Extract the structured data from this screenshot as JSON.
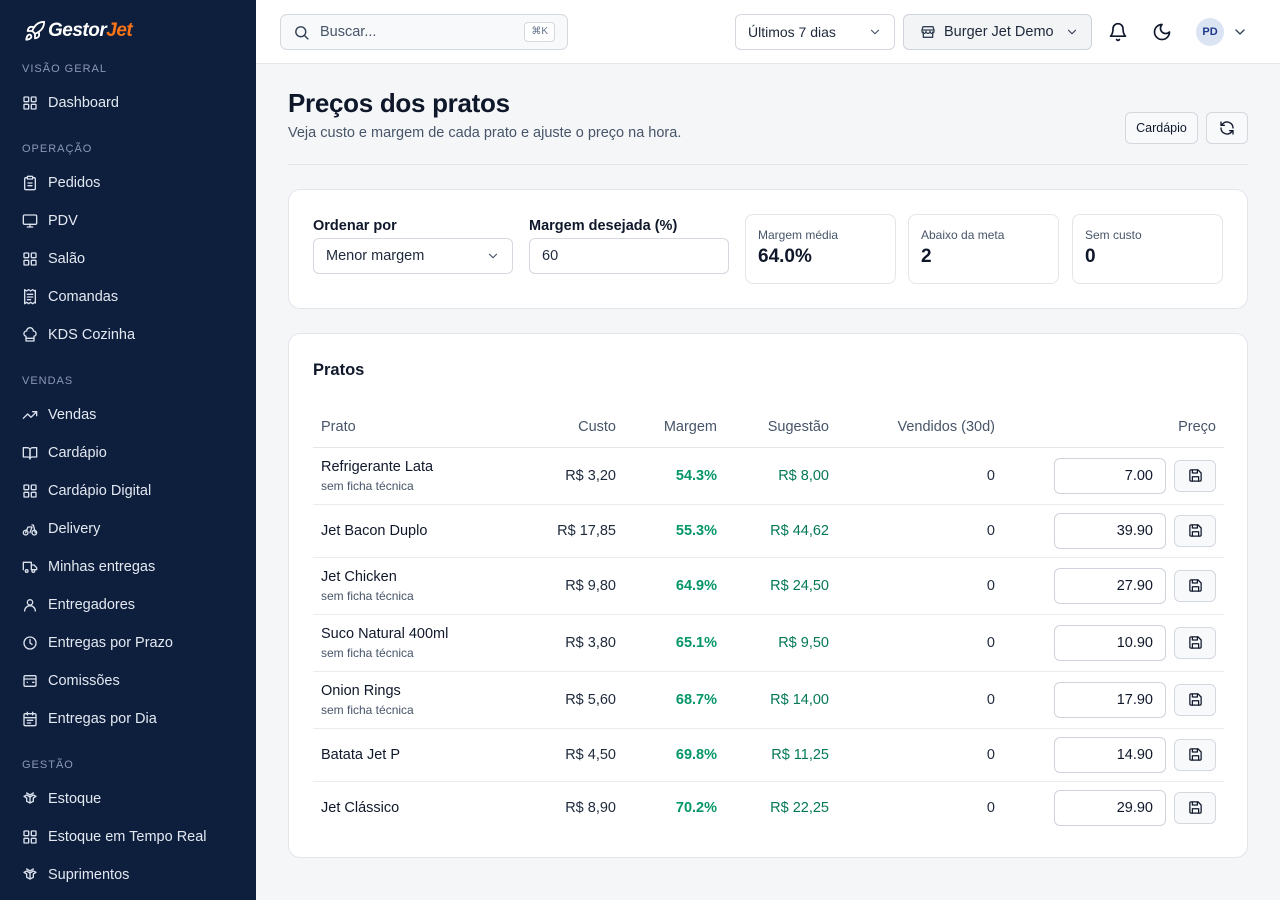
{
  "brand": {
    "name_part1": "Gestor",
    "name_part2": "Jet"
  },
  "sidebar": {
    "sections": [
      {
        "title": "VISÃO GERAL",
        "items": [
          {
            "label": "Dashboard",
            "icon": "grid-icon"
          }
        ]
      },
      {
        "title": "OPERAÇÃO",
        "items": [
          {
            "label": "Pedidos",
            "icon": "clipboard-icon"
          },
          {
            "label": "PDV",
            "icon": "monitor-icon"
          },
          {
            "label": "Salão",
            "icon": "grid-icon"
          },
          {
            "label": "Comandas",
            "icon": "receipt-icon"
          },
          {
            "label": "KDS Cozinha",
            "icon": "chef-hat-icon"
          }
        ]
      },
      {
        "title": "VENDAS",
        "items": [
          {
            "label": "Vendas",
            "icon": "trending-up-icon"
          },
          {
            "label": "Cardápio",
            "icon": "book-open-icon"
          },
          {
            "label": "Cardápio Digital",
            "icon": "grid-icon"
          },
          {
            "label": "Delivery",
            "icon": "bike-icon"
          },
          {
            "label": "Minhas entregas",
            "icon": "truck-icon"
          },
          {
            "label": "Entregadores",
            "icon": "user-icon"
          },
          {
            "label": "Entregas por Prazo",
            "icon": "clock-icon"
          },
          {
            "label": "Comissões",
            "icon": "wallet-icon"
          },
          {
            "label": "Entregas por Dia",
            "icon": "calendar-icon"
          }
        ]
      },
      {
        "title": "GESTÃO",
        "items": [
          {
            "label": "Estoque",
            "icon": "boxes-icon"
          },
          {
            "label": "Estoque em Tempo Real",
            "icon": "grid-icon"
          },
          {
            "label": "Suprimentos",
            "icon": "boxes-icon"
          }
        ]
      }
    ]
  },
  "topbar": {
    "search_placeholder": "Buscar...",
    "search_shortcut": "⌘K",
    "period": "Últimos 7 dias",
    "store": "Burger Jet Demo",
    "avatar_initials": "PD"
  },
  "page": {
    "title": "Preços dos pratos",
    "subtitle": "Veja custo e margem de cada prato e ajuste o preço na hora.",
    "cardapio_button": "Cardápio"
  },
  "filters": {
    "sort_label": "Ordenar por",
    "sort_value": "Menor margem",
    "margin_label": "Margem desejada (%)",
    "margin_value": "60"
  },
  "stats": [
    {
      "label": "Margem média",
      "value": "64.0%"
    },
    {
      "label": "Abaixo da meta",
      "value": "2"
    },
    {
      "label": "Sem custo",
      "value": "0"
    }
  ],
  "table": {
    "title": "Pratos",
    "headers": {
      "prato": "Prato",
      "custo": "Custo",
      "margem": "Margem",
      "sugestao": "Sugestão",
      "vendidos": "Vendidos (30d)",
      "preco": "Preço"
    },
    "rows": [
      {
        "name": "Refrigerante Lata",
        "sub": "sem ficha técnica",
        "custo": "R$ 3,20",
        "margem": "54.3%",
        "sugestao": "R$ 8,00",
        "vendidos": "0",
        "preco": "7.00"
      },
      {
        "name": "Jet Bacon Duplo",
        "sub": "",
        "custo": "R$ 17,85",
        "margem": "55.3%",
        "sugestao": "R$ 44,62",
        "vendidos": "0",
        "preco": "39.90"
      },
      {
        "name": "Jet Chicken",
        "sub": "sem ficha técnica",
        "custo": "R$ 9,80",
        "margem": "64.9%",
        "sugestao": "R$ 24,50",
        "vendidos": "0",
        "preco": "27.90"
      },
      {
        "name": "Suco Natural 400ml",
        "sub": "sem ficha técnica",
        "custo": "R$ 3,80",
        "margem": "65.1%",
        "sugestao": "R$ 9,50",
        "vendidos": "0",
        "preco": "10.90"
      },
      {
        "name": "Onion Rings",
        "sub": "sem ficha técnica",
        "custo": "R$ 5,60",
        "margem": "68.7%",
        "sugestao": "R$ 14,00",
        "vendidos": "0",
        "preco": "17.90"
      },
      {
        "name": "Batata Jet P",
        "sub": "",
        "custo": "R$ 4,50",
        "margem": "69.8%",
        "sugestao": "R$ 11,25",
        "vendidos": "0",
        "preco": "14.90"
      },
      {
        "name": "Jet Clássico",
        "sub": "",
        "custo": "R$ 8,90",
        "margem": "70.2%",
        "sugestao": "R$ 22,25",
        "vendidos": "0",
        "preco": "29.90"
      }
    ]
  },
  "colors": {
    "sidebar_bg": "#0e1e3d",
    "accent": "#f97316",
    "margin_green": "#059669"
  }
}
